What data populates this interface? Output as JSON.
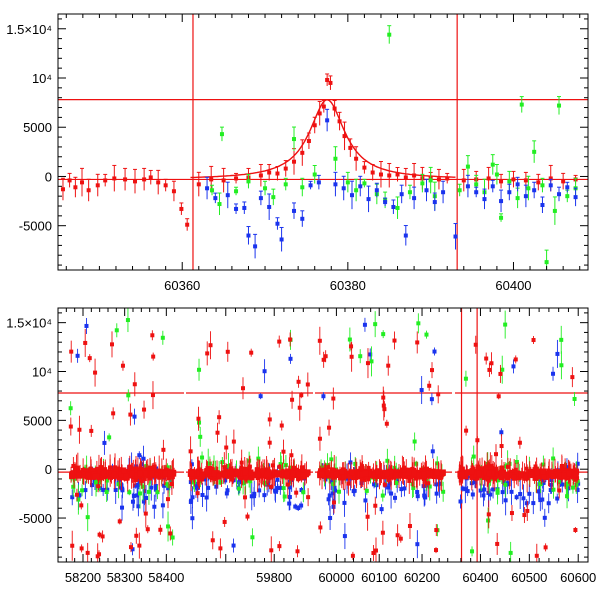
{
  "chart_data": [
    {
      "type": "scatter",
      "title": "",
      "xlabel": "",
      "ylabel": "",
      "xlim": [
        60345,
        60409
      ],
      "ylim": [
        -9500,
        16500
      ],
      "grid": false,
      "legend": "none",
      "x_ticks": [
        {
          "value": 60360,
          "label": "60360"
        },
        {
          "value": 60380,
          "label": "60380"
        },
        {
          "value": 60400,
          "label": "60400"
        }
      ],
      "y_ticks": [
        {
          "value": 15000,
          "label": "1.5×10⁴"
        },
        {
          "value": 10000,
          "label": "10⁴"
        },
        {
          "value": 5000,
          "label": "5000"
        },
        {
          "value": 0,
          "label": "0"
        },
        {
          "value": -5000,
          "label": "-5000"
        }
      ],
      "reference_lines": {
        "vertical": [
          60361.3,
          60393.2
        ],
        "horizontal": [
          7800,
          -300
        ],
        "color": "#ee1111"
      },
      "model_curve": {
        "color": "#ee1111",
        "baseline": -300,
        "peak_x": 60377.5,
        "peak_y": 7800,
        "width": 2.6
      },
      "series": [
        {
          "color": "#ee1111",
          "points": [
            [
              60345.6,
              -1300
            ],
            [
              60346.4,
              -400
            ],
            [
              60347.1,
              -1100
            ],
            [
              60347.9,
              -600
            ],
            [
              60348.7,
              -1400
            ],
            [
              60349.8,
              -900
            ],
            [
              60350.7,
              -400
            ],
            [
              60351.8,
              -200
            ],
            [
              60353.1,
              -300
            ],
            [
              60354.3,
              -500
            ],
            [
              60355.4,
              -300
            ],
            [
              60356.2,
              -100
            ],
            [
              60357.1,
              -600
            ],
            [
              60358.0,
              -900
            ],
            [
              60359.0,
              -1500
            ],
            [
              60359.9,
              -3300
            ],
            [
              60360.6,
              -4900
            ],
            [
              60362.0,
              -800
            ],
            [
              60363.5,
              -300
            ],
            [
              60365.0,
              -400
            ],
            [
              60366.5,
              -200
            ],
            [
              60368.0,
              -100
            ],
            [
              60369.5,
              100
            ],
            [
              60370.5,
              400
            ],
            [
              60371.5,
              300
            ],
            [
              60372.5,
              800
            ],
            [
              60373.5,
              1500
            ],
            [
              60374.5,
              2400
            ],
            [
              60375.3,
              3600
            ],
            [
              60376.0,
              5200
            ],
            [
              60376.6,
              6400
            ],
            [
              60377.1,
              7100
            ],
            [
              60377.5,
              9800
            ],
            [
              60377.9,
              9500
            ],
            [
              60378.4,
              6900
            ],
            [
              60379.0,
              5600
            ],
            [
              60379.6,
              4100
            ],
            [
              60380.3,
              2900
            ],
            [
              60381.0,
              1800
            ],
            [
              60382.0,
              900
            ],
            [
              60383.0,
              400
            ],
            [
              60384.0,
              200
            ],
            [
              60385.0,
              100
            ],
            [
              60386.0,
              200
            ],
            [
              60387.0,
              -100
            ],
            [
              60388.0,
              100
            ],
            [
              60389.0,
              -200
            ],
            [
              60390.0,
              -100
            ],
            [
              60391.0,
              -300
            ],
            [
              60392.0,
              -200
            ],
            [
              60394.0,
              -400
            ],
            [
              60395.5,
              -300
            ],
            [
              60397.0,
              -200
            ],
            [
              60398.5,
              -500
            ],
            [
              60400.0,
              -300
            ],
            [
              60401.5,
              -400
            ],
            [
              60403.0,
              -600
            ],
            [
              60404.5,
              -200
            ],
            [
              60406.0,
              -500
            ],
            [
              60407.5,
              -300
            ]
          ]
        },
        {
          "color": "#22ee22",
          "points": [
            [
              60364.8,
              4300
            ],
            [
              60363.6,
              -1400
            ],
            [
              60364.5,
              -2800
            ],
            [
              60366.5,
              -1500
            ],
            [
              60368.0,
              -500
            ],
            [
              60370.0,
              -1200
            ],
            [
              60371.0,
              -2100
            ],
            [
              60372.5,
              -800
            ],
            [
              60373.5,
              3800
            ],
            [
              60374.5,
              -1100
            ],
            [
              60376.0,
              200
            ],
            [
              60378.5,
              1800
            ],
            [
              60380.0,
              -600
            ],
            [
              60381.0,
              -1400
            ],
            [
              60382.0,
              -700
            ],
            [
              60383.5,
              -1800
            ],
            [
              60384.5,
              -2400
            ],
            [
              60385.0,
              14400
            ],
            [
              60386.0,
              -3200
            ],
            [
              60387.5,
              -1600
            ],
            [
              60389.0,
              -700
            ],
            [
              60390.5,
              -2000
            ],
            [
              60393.5,
              -1400
            ],
            [
              60395.5,
              -800
            ],
            [
              60396.5,
              -1600
            ],
            [
              60397.5,
              1200
            ],
            [
              60398.5,
              -4200
            ],
            [
              60399.5,
              -500
            ],
            [
              60400.5,
              -2200
            ],
            [
              60401.0,
              7300
            ],
            [
              60401.8,
              -1200
            ],
            [
              60402.5,
              2500
            ],
            [
              60403.5,
              -900
            ],
            [
              60404.0,
              -8700
            ],
            [
              60405.0,
              -3500
            ],
            [
              60405.5,
              7200
            ],
            [
              60406.5,
              -2000
            ],
            [
              60407.5,
              -1200
            ],
            [
              60394.5,
              1000
            ],
            [
              60390.0,
              -400
            ],
            [
              60398.0,
              200
            ]
          ]
        },
        {
          "color": "#1a33ee",
          "points": [
            [
              60363.0,
              -1200
            ],
            [
              60364.0,
              -2200
            ],
            [
              60365.5,
              -1900
            ],
            [
              60366.5,
              -3300
            ],
            [
              60367.5,
              -3200
            ],
            [
              60368.0,
              -6000
            ],
            [
              60368.8,
              -7100
            ],
            [
              60369.5,
              -2200
            ],
            [
              60370.5,
              -3100
            ],
            [
              60371.5,
              -4800
            ],
            [
              60372.0,
              -6400
            ],
            [
              60373.5,
              -3500
            ],
            [
              60374.5,
              -4300
            ],
            [
              60375.5,
              -900
            ],
            [
              60376.5,
              -600
            ],
            [
              60377.5,
              5700
            ],
            [
              60378.5,
              -800
            ],
            [
              60379.5,
              -1200
            ],
            [
              60380.5,
              -1900
            ],
            [
              60381.5,
              -1000
            ],
            [
              60382.5,
              -2300
            ],
            [
              60383.5,
              -1400
            ],
            [
              60384.5,
              -2600
            ],
            [
              60385.5,
              -3100
            ],
            [
              60386.5,
              -1800
            ],
            [
              60387.0,
              -6000
            ],
            [
              60388.0,
              -2200
            ],
            [
              60389.5,
              -1400
            ],
            [
              60390.5,
              -2600
            ],
            [
              60391.5,
              -1600
            ],
            [
              60393.0,
              -6100
            ],
            [
              60394.5,
              -1000
            ],
            [
              60395.5,
              -1600
            ],
            [
              60396.5,
              -2300
            ],
            [
              60397.5,
              -1000
            ],
            [
              60398.5,
              -2500
            ],
            [
              60399.5,
              -1600
            ],
            [
              60400.5,
              -800
            ],
            [
              60401.5,
              -2000
            ],
            [
              60402.5,
              -1400
            ],
            [
              60403.5,
              -2900
            ],
            [
              60404.5,
              -900
            ],
            [
              60405.5,
              -1800
            ],
            [
              60406.5,
              -1100
            ],
            [
              60407.5,
              -2100
            ]
          ]
        }
      ]
    },
    {
      "type": "scatter",
      "title": "",
      "xlabel": "",
      "ylabel": "",
      "ylim": [
        -9500,
        16500
      ],
      "grid": false,
      "legend": "none",
      "broken_x_axis": true,
      "segments": [
        {
          "xlim": [
            58140,
            58440
          ],
          "ticks": [
            {
              "value": 58200,
              "label": "58200"
            },
            {
              "value": 58300,
              "label": "58300"
            },
            {
              "value": 58400,
              "label": "58400"
            }
          ]
        },
        {
          "xlim": [
            59620,
            59880
          ],
          "ticks": [
            {
              "value": 59800,
              "label": "59800"
            }
          ]
        },
        {
          "xlim": [
            59950,
            60270
          ],
          "ticks": [
            {
              "value": 60000,
              "label": "60000"
            },
            {
              "value": 60100,
              "label": "60100"
            },
            {
              "value": 60200,
              "label": "60200"
            }
          ]
        },
        {
          "xlim": [
            60350,
            60620
          ],
          "ticks": [
            {
              "value": 60400,
              "label": "60400"
            },
            {
              "value": 60500,
              "label": "60500"
            },
            {
              "value": 60600,
              "label": "60600"
            }
          ]
        }
      ],
      "data_ranges": [
        {
          "segment": 0,
          "x": [
            58170,
            58420
          ]
        },
        {
          "segment": 1,
          "x": [
            59625,
            59870
          ]
        },
        {
          "segment": 2,
          "x": [
            59960,
            60250
          ]
        },
        {
          "segment": 3,
          "x": [
            60355,
            60600
          ]
        }
      ],
      "y_ticks": [
        {
          "value": 15000,
          "label": "1.5×10⁴"
        },
        {
          "value": 10000,
          "label": "10⁴"
        },
        {
          "value": 5000,
          "label": "5000"
        },
        {
          "value": 0,
          "label": "0"
        },
        {
          "value": -5000,
          "label": "-5000"
        }
      ],
      "reference_lines": {
        "vertical": [
          60361.3,
          60393.2
        ],
        "horizontal": [
          7800,
          -300
        ],
        "color": "#ee1111"
      },
      "series": [
        {
          "name": "",
          "color": "#ee1111",
          "base": -400,
          "spread": 900,
          "outlier_max": 14000,
          "outlier_min": -9000,
          "count_per_segment": 160
        },
        {
          "name": "",
          "color": "#22ee22",
          "base": -800,
          "spread": 2500,
          "outlier_max": 15500,
          "outlier_min": -9200,
          "count_per_segment": 45
        },
        {
          "name": "",
          "color": "#1a33ee",
          "base": -1800,
          "spread": 3000,
          "outlier_max": 16000,
          "outlier_min": -9400,
          "count_per_segment": 55
        }
      ]
    }
  ]
}
